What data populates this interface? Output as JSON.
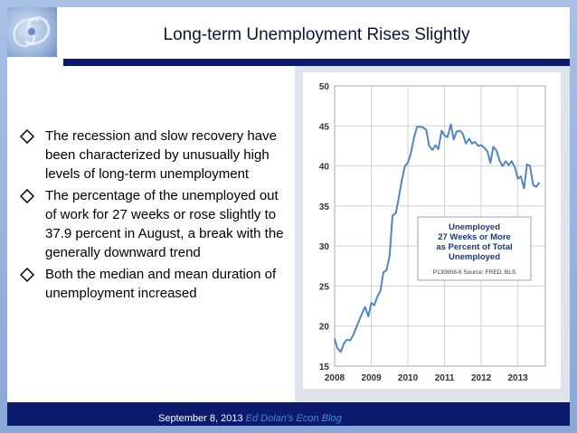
{
  "title": "Long-term Unemployment Rises Slightly",
  "bullets": [
    "The recession and slow recovery have been characterized by unusually high levels of long-term unemployment",
    "The percentage of the unemployed out of work for 27 weeks or rose slightly to 37.9 percent in August, a break with the generally downward trend",
    "Both the median and mean duration of unemployment increased"
  ],
  "footer": {
    "date": "September 8, 2013",
    "blog": "Ed Dolan's Econ Blog"
  },
  "colors": {
    "title_rule": "#0c1a6e",
    "line": "#4f86c6",
    "legend_text": "#1a3a7a",
    "border": "#8aa7d6"
  },
  "chart_data": {
    "type": "line",
    "title": "",
    "xlabel": "",
    "ylabel": "",
    "legend_title": [
      "Unemployed",
      "27 Weeks or More",
      "as Percent of Total",
      "Unemployed"
    ],
    "legend_source": "P130908-6 Source: FRED, BLS",
    "ylim": [
      15,
      50
    ],
    "yticks": [
      15,
      20,
      25,
      30,
      35,
      40,
      45,
      50
    ],
    "xlim": [
      2008,
      2013.75
    ],
    "xticks": [
      "2008",
      "2009",
      "2010",
      "2011",
      "2012",
      "2013"
    ],
    "grid": true,
    "x": [
      2008.0,
      2008.08,
      2008.17,
      2008.25,
      2008.33,
      2008.42,
      2008.5,
      2008.58,
      2008.67,
      2008.75,
      2008.83,
      2008.92,
      2009.0,
      2009.08,
      2009.17,
      2009.25,
      2009.33,
      2009.42,
      2009.5,
      2009.58,
      2009.67,
      2009.75,
      2009.83,
      2009.92,
      2010.0,
      2010.08,
      2010.17,
      2010.25,
      2010.33,
      2010.42,
      2010.5,
      2010.58,
      2010.67,
      2010.75,
      2010.83,
      2010.92,
      2011.0,
      2011.08,
      2011.17,
      2011.25,
      2011.33,
      2011.42,
      2011.5,
      2011.58,
      2011.67,
      2011.75,
      2011.83,
      2011.92,
      2012.0,
      2012.08,
      2012.17,
      2012.25,
      2012.33,
      2012.42,
      2012.5,
      2012.58,
      2012.67,
      2012.75,
      2012.83,
      2012.92,
      2013.0,
      2013.08,
      2013.17,
      2013.25,
      2013.33,
      2013.42,
      2013.5,
      2013.58
    ],
    "y": [
      18.4,
      17.2,
      16.8,
      17.8,
      18.3,
      18.2,
      18.8,
      19.7,
      20.7,
      21.6,
      22.4,
      21.2,
      22.9,
      22.6,
      23.7,
      24.4,
      26.7,
      27.0,
      28.8,
      33.8,
      34.1,
      36.0,
      38.2,
      40.0,
      40.4,
      41.6,
      43.6,
      44.9,
      44.9,
      44.8,
      44.5,
      42.5,
      42.0,
      42.6,
      42.1,
      44.4,
      43.8,
      43.6,
      45.2,
      43.3,
      44.3,
      44.4,
      44.0,
      42.8,
      43.4,
      42.8,
      43.0,
      42.5,
      42.6,
      42.3,
      41.8,
      40.4,
      42.4,
      41.9,
      40.7,
      40.0,
      40.6,
      40.1,
      40.6,
      39.8,
      38.4,
      38.7,
      37.2,
      40.2,
      40.0,
      37.6,
      37.4,
      37.9
    ]
  }
}
